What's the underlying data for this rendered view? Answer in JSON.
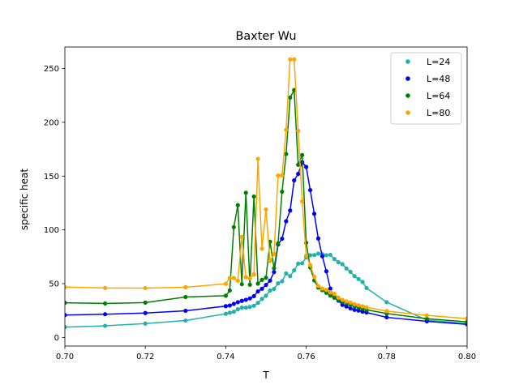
{
  "chart_data": {
    "type": "line",
    "title": "Baxter Wu",
    "xlabel": "T",
    "ylabel": "specific heat",
    "xlim": [
      0.7,
      0.8
    ],
    "ylim": [
      -8,
      270
    ],
    "xticks": [
      0.7,
      0.72,
      0.74,
      0.76,
      0.78,
      0.8
    ],
    "xtick_labels": [
      "0.70",
      "0.72",
      "0.74",
      "0.76",
      "0.78",
      "0.80"
    ],
    "yticks": [
      0,
      50,
      100,
      150,
      200,
      250
    ],
    "ytick_labels": [
      "0",
      "50",
      "100",
      "150",
      "200",
      "250"
    ],
    "grid": false,
    "legend_position": "upper-right",
    "series": [
      {
        "name": "L=24",
        "color": "#20b2aa",
        "points": [
          [
            0.7,
            9.6
          ],
          [
            0.71,
            10.8
          ],
          [
            0.72,
            12.9
          ],
          [
            0.73,
            15.7
          ],
          [
            0.74,
            22.0
          ],
          [
            0.741,
            23.0
          ],
          [
            0.742,
            23.9
          ],
          [
            0.743,
            26.2
          ],
          [
            0.744,
            27.7
          ],
          [
            0.745,
            27.7
          ],
          [
            0.746,
            28.3
          ],
          [
            0.747,
            29.5
          ],
          [
            0.748,
            32.1
          ],
          [
            0.749,
            35.8
          ],
          [
            0.75,
            38.8
          ],
          [
            0.751,
            43.6
          ],
          [
            0.752,
            45.1
          ],
          [
            0.753,
            50.3
          ],
          [
            0.754,
            52.2
          ],
          [
            0.755,
            59.5
          ],
          [
            0.756,
            57.0
          ],
          [
            0.757,
            62.4
          ],
          [
            0.758,
            68.6
          ],
          [
            0.759,
            69.0
          ],
          [
            0.76,
            74.4
          ],
          [
            0.761,
            76.4
          ],
          [
            0.762,
            76.6
          ],
          [
            0.763,
            77.9
          ],
          [
            0.764,
            77.3
          ],
          [
            0.765,
            76.4
          ],
          [
            0.766,
            76.8
          ],
          [
            0.767,
            72.9
          ],
          [
            0.768,
            69.9
          ],
          [
            0.769,
            68.1
          ],
          [
            0.77,
            64.1
          ],
          [
            0.771,
            61.0
          ],
          [
            0.772,
            57.0
          ],
          [
            0.773,
            54.3
          ],
          [
            0.774,
            51.6
          ],
          [
            0.775,
            45.9
          ],
          [
            0.78,
            32.8
          ],
          [
            0.79,
            16.1
          ],
          [
            0.8,
            12.9
          ]
        ]
      },
      {
        "name": "L=48",
        "color": "#0000ff",
        "points": [
          [
            0.7,
            20.8
          ],
          [
            0.71,
            21.6
          ],
          [
            0.72,
            22.7
          ],
          [
            0.73,
            24.8
          ],
          [
            0.74,
            29.1
          ],
          [
            0.741,
            29.7
          ],
          [
            0.742,
            31.2
          ],
          [
            0.743,
            32.8
          ],
          [
            0.744,
            34.0
          ],
          [
            0.745,
            35.0
          ],
          [
            0.746,
            36.3
          ],
          [
            0.747,
            38.4
          ],
          [
            0.748,
            42.8
          ],
          [
            0.749,
            45.3
          ],
          [
            0.75,
            48.8
          ],
          [
            0.751,
            52.8
          ],
          [
            0.752,
            60.8
          ],
          [
            0.753,
            86.4
          ],
          [
            0.754,
            91.8
          ],
          [
            0.755,
            108.0
          ],
          [
            0.756,
            118.0
          ],
          [
            0.757,
            146.0
          ],
          [
            0.758,
            152.0
          ],
          [
            0.759,
            163.0
          ],
          [
            0.76,
            158.5
          ],
          [
            0.761,
            137.0
          ],
          [
            0.762,
            115.0
          ],
          [
            0.763,
            92.0
          ],
          [
            0.764,
            75.5
          ],
          [
            0.765,
            61.5
          ],
          [
            0.766,
            45.4
          ],
          [
            0.767,
            37.0
          ],
          [
            0.768,
            34.3
          ],
          [
            0.769,
            30.3
          ],
          [
            0.77,
            28.8
          ],
          [
            0.771,
            27.0
          ],
          [
            0.772,
            25.7
          ],
          [
            0.773,
            25.0
          ],
          [
            0.774,
            24.0
          ],
          [
            0.775,
            23.2
          ],
          [
            0.78,
            18.7
          ],
          [
            0.79,
            15.0
          ],
          [
            0.8,
            12.2
          ]
        ]
      },
      {
        "name": "L=64",
        "color": "#008000",
        "points": [
          [
            0.7,
            32.2
          ],
          [
            0.71,
            31.6
          ],
          [
            0.72,
            32.4
          ],
          [
            0.73,
            37.6
          ],
          [
            0.74,
            38.8
          ],
          [
            0.741,
            43.7
          ],
          [
            0.742,
            102.5
          ],
          [
            0.743,
            123.0
          ],
          [
            0.744,
            49.5
          ],
          [
            0.745,
            134.5
          ],
          [
            0.746,
            49.0
          ],
          [
            0.747,
            131.0
          ],
          [
            0.748,
            50.0
          ],
          [
            0.749,
            53.5
          ],
          [
            0.75,
            55.5
          ],
          [
            0.751,
            89.0
          ],
          [
            0.752,
            64.3
          ],
          [
            0.753,
            87.5
          ],
          [
            0.754,
            135.5
          ],
          [
            0.755,
            170.5
          ],
          [
            0.756,
            223.0
          ],
          [
            0.757,
            230.0
          ],
          [
            0.758,
            160.5
          ],
          [
            0.759,
            169.5
          ],
          [
            0.76,
            88.0
          ],
          [
            0.761,
            65.0
          ],
          [
            0.762,
            53.0
          ],
          [
            0.763,
            46.3
          ],
          [
            0.764,
            44.0
          ],
          [
            0.765,
            41.5
          ],
          [
            0.766,
            39.0
          ],
          [
            0.767,
            37.0
          ],
          [
            0.768,
            35.0
          ],
          [
            0.769,
            33.3
          ],
          [
            0.77,
            32.0
          ],
          [
            0.771,
            30.5
          ],
          [
            0.772,
            29.0
          ],
          [
            0.773,
            27.8
          ],
          [
            0.774,
            26.7
          ],
          [
            0.775,
            25.7
          ],
          [
            0.78,
            22.2
          ],
          [
            0.79,
            17.4
          ],
          [
            0.8,
            14.5
          ]
        ]
      },
      {
        "name": "L=80",
        "color": "#ffa500",
        "points": [
          [
            0.7,
            46.8
          ],
          [
            0.71,
            46.0
          ],
          [
            0.72,
            45.9
          ],
          [
            0.73,
            46.7
          ],
          [
            0.74,
            49.8
          ],
          [
            0.741,
            55.3
          ],
          [
            0.742,
            55.3
          ],
          [
            0.743,
            52.6
          ],
          [
            0.744,
            93.5
          ],
          [
            0.745,
            56.0
          ],
          [
            0.746,
            55.0
          ],
          [
            0.747,
            58.6
          ],
          [
            0.748,
            166.0
          ],
          [
            0.749,
            82.5
          ],
          [
            0.75,
            119.0
          ],
          [
            0.751,
            71.0
          ],
          [
            0.752,
            77.5
          ],
          [
            0.753,
            150.5
          ],
          [
            0.754,
            150.7
          ],
          [
            0.755,
            193.0
          ],
          [
            0.756,
            258.5
          ],
          [
            0.757,
            258.5
          ],
          [
            0.758,
            192.0
          ],
          [
            0.759,
            126.5
          ],
          [
            0.76,
            76.2
          ],
          [
            0.761,
            67.2
          ],
          [
            0.762,
            56.3
          ],
          [
            0.763,
            47.8
          ],
          [
            0.764,
            45.4
          ],
          [
            0.765,
            44.2
          ],
          [
            0.766,
            42.0
          ],
          [
            0.767,
            40.5
          ],
          [
            0.768,
            37.0
          ],
          [
            0.769,
            35.0
          ],
          [
            0.77,
            33.5
          ],
          [
            0.771,
            32.5
          ],
          [
            0.772,
            31.0
          ],
          [
            0.773,
            30.0
          ],
          [
            0.774,
            29.0
          ],
          [
            0.775,
            28.0
          ],
          [
            0.78,
            24.5
          ],
          [
            0.79,
            20.5
          ],
          [
            0.8,
            17.5
          ]
        ]
      }
    ]
  }
}
